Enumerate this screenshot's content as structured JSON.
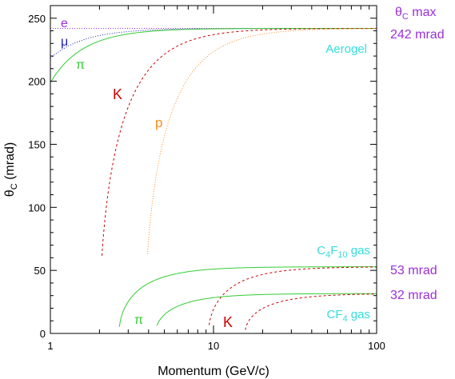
{
  "chart_data": {
    "type": "line",
    "xlabel": "Momentum  (GeV/c)",
    "ylabel": "θ",
    "ylabel_sub": "C",
    "ylabel_unit": " (mrad)",
    "x_scale": "log",
    "xlim": [
      1,
      100
    ],
    "ylim": [
      0,
      260
    ],
    "x_ticks": [
      1,
      10,
      100
    ],
    "x_tick_labels": [
      "1",
      "10",
      "100"
    ],
    "y_ticks": [
      0,
      50,
      100,
      150,
      200,
      250
    ],
    "y_tick_labels": [
      "0",
      "50",
      "100",
      "150",
      "200",
      "250"
    ],
    "grid": false,
    "radiators": [
      {
        "name": "Aerogel",
        "n": 1.03,
        "max_angle_mrad": 242,
        "max_angle_label": "242 mrad",
        "max_header": "θ",
        "max_header_sub": "C",
        "max_header_suffix": " max",
        "particles": [
          {
            "label": "e",
            "mass": 0.000511,
            "color": "#9b30d9",
            "dash": "1,2",
            "xmin": 1
          },
          {
            "label": "μ",
            "mass": 0.10566,
            "color": "#1f1fb4",
            "dash": "1,2",
            "xmin": 1
          },
          {
            "label": "π",
            "mass": 0.13957,
            "color": "#33cc33",
            "dash": "",
            "xmin": 1
          },
          {
            "label": "K",
            "mass": 0.49368,
            "color": "#cc0000",
            "dash": "3,3",
            "xmin": 2.07
          },
          {
            "label": "p",
            "mass": 0.93827,
            "color": "#ff8c1a",
            "dash": "1,2",
            "xmin": 3.94
          }
        ]
      },
      {
        "name": "C4F10 gas",
        "name_parts": [
          "C",
          "4",
          "F",
          "10",
          " gas"
        ],
        "n": 1.0014,
        "max_angle_mrad": 53,
        "max_angle_label": "53 mrad",
        "particles": [
          {
            "label": "π",
            "mass": 0.13957,
            "color": "#33cc33",
            "dash": "",
            "xmin": 2.65
          },
          {
            "label": "K",
            "mass": 0.49368,
            "color": "#cc0000",
            "dash": "3,3",
            "xmin": 9.4
          }
        ]
      },
      {
        "name": "CF4 gas",
        "name_parts": [
          "CF",
          "4",
          " gas"
        ],
        "n": 1.0005,
        "max_angle_mrad": 32,
        "max_angle_label": "32 mrad",
        "particles": [
          {
            "label": "π",
            "mass": 0.13957,
            "color": "#33cc33",
            "dash": "",
            "xmin": 4.5
          },
          {
            "label": "K",
            "mass": 0.49368,
            "color": "#cc0000",
            "dash": "3,3",
            "xmin": 15.6
          }
        ]
      }
    ],
    "annotations": [
      {
        "text": "e",
        "color": "#9b30d9"
      },
      {
        "text": "μ",
        "color": "#1f1fb4"
      },
      {
        "text": "π",
        "color": "#33cc33"
      },
      {
        "text": "K",
        "color": "#cc0000"
      },
      {
        "text": "p",
        "color": "#ff8c1a"
      },
      {
        "text": "π",
        "color": "#33cc33"
      },
      {
        "text": "K",
        "color": "#cc0000"
      }
    ],
    "colors": {
      "axis": "#000000",
      "radiator_label": "#33dddd",
      "max_label": "#9b30d9"
    }
  }
}
